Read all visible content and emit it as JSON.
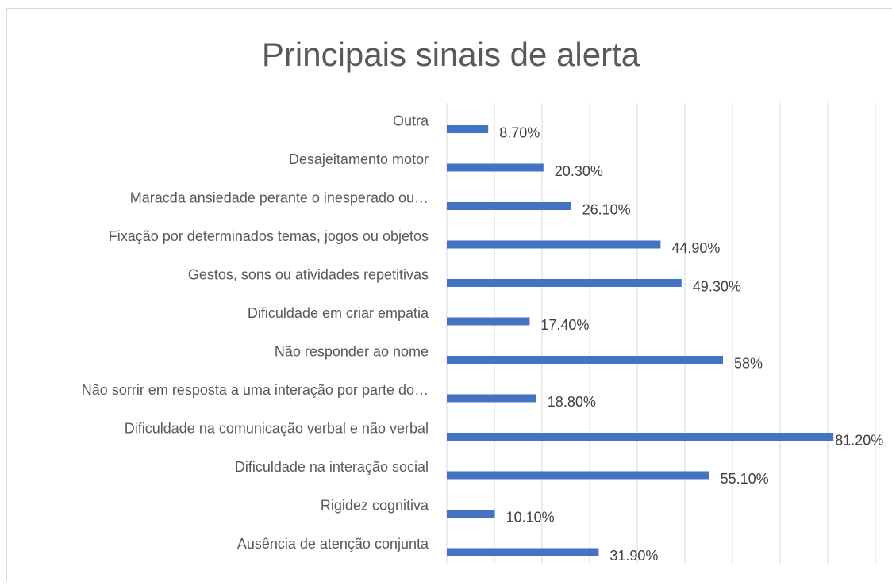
{
  "chart_data": {
    "type": "bar",
    "orientation": "horizontal",
    "title": "Principais sinais de alerta",
    "categories": [
      "Outra",
      "Desajeitamento motor",
      "Maracda ansiedade perante o inesperado ou…",
      "Fixação por determinados temas, jogos ou objetos",
      "Gestos, sons ou atividades repetitivas",
      "Dificuldade em criar empatia",
      "Não responder ao nome",
      "Não sorrir em resposta a uma interação por parte do…",
      "Dificuldade na comunicação verbal e não verbal",
      "Dificuldade na interação social",
      "Rigidez cognitiva",
      "Ausência de atenção conjunta"
    ],
    "values": [
      8.7,
      20.3,
      26.1,
      44.9,
      49.3,
      17.4,
      58,
      18.8,
      81.2,
      55.1,
      10.1,
      31.9
    ],
    "value_labels": [
      "8.70%",
      "20.30%",
      "26.10%",
      "44.90%",
      "49.30%",
      "17.40%",
      "58%",
      "18.80%",
      "81.20%",
      "55.10%",
      "10.10%",
      "31.90%"
    ],
    "color": "#4472c4",
    "xlim": [
      0,
      90
    ],
    "xticks": [
      0,
      10,
      20,
      30,
      40,
      50,
      60,
      70,
      80,
      90
    ],
    "grid": true
  }
}
